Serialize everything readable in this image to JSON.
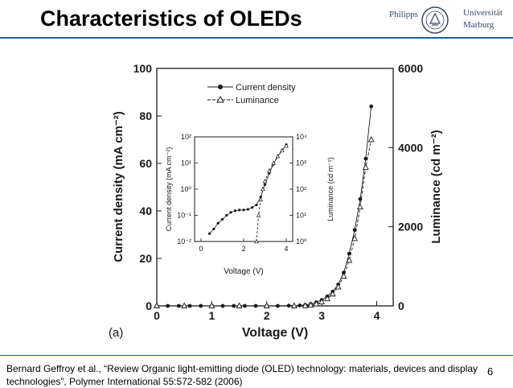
{
  "slide": {
    "title": "Characteristics of OLEDs",
    "logo_line1": "Philipps",
    "logo_line2a": "Universität",
    "logo_line2b": "Marburg",
    "citation": "Bernard Geffroy et al., “Review Organic light-emitting diode (OLED) technology: materials, devices and display technologies”, Polymer International 55:572-582 (2006)",
    "page_number": "6"
  },
  "colors": {
    "title_rule": "#1f5fa8",
    "plot_ink": "#1a1a1a"
  },
  "chart_data": [
    {
      "type": "line",
      "panel_label": "(a)",
      "xlabel": "Voltage (V)",
      "ylabel": "Current density (mA cm⁻²)",
      "y2label": "Luminance (cd m⁻²)",
      "xlim": [
        0,
        4.3
      ],
      "ylim": [
        0,
        100
      ],
      "y2lim": [
        0,
        6000
      ],
      "xticks": [
        "0",
        "1",
        "2",
        "3",
        "4"
      ],
      "yticks": [
        "0",
        "20",
        "40",
        "60",
        "80",
        "100"
      ],
      "y2ticks": [
        "0",
        "2000",
        "4000",
        "6000"
      ],
      "legend": "top-left",
      "series": [
        {
          "name": "Current density",
          "marker": "filled-circle",
          "axis": "left",
          "x": [
            0,
            0.2,
            0.4,
            0.6,
            0.8,
            1.0,
            1.2,
            1.4,
            1.6,
            1.8,
            2.0,
            2.2,
            2.4,
            2.6,
            2.7,
            2.8,
            2.9,
            3.0,
            3.1,
            3.2,
            3.3,
            3.4,
            3.5,
            3.6,
            3.7,
            3.8,
            3.9
          ],
          "values": [
            0,
            0,
            0,
            0,
            0,
            0,
            0,
            0,
            0,
            0,
            0,
            0,
            0.1,
            0.2,
            0.4,
            0.8,
            1.5,
            2.5,
            4,
            6,
            9,
            14,
            22,
            32,
            45,
            62,
            84
          ]
        },
        {
          "name": "Luminance",
          "marker": "open-triangle",
          "axis": "right",
          "x": [
            0,
            0.5,
            1.0,
            1.5,
            2.0,
            2.5,
            2.7,
            2.8,
            2.9,
            3.0,
            3.1,
            3.2,
            3.3,
            3.4,
            3.5,
            3.6,
            3.7,
            3.8,
            3.9
          ],
          "values": [
            0,
            0,
            0,
            0,
            0,
            0,
            5,
            20,
            50,
            100,
            180,
            300,
            480,
            750,
            1150,
            1700,
            2500,
            3500,
            4200
          ]
        }
      ]
    },
    {
      "type": "line",
      "role": "inset",
      "xlabel": "Voltage (V)",
      "ylabel": "Current density (mA cm⁻²)",
      "y2label": "Luminance (cd m⁻²)",
      "scale": "log",
      "xlim": [
        -0.3,
        4.3
      ],
      "ylim": [
        0.01,
        100
      ],
      "y2lim": [
        1,
        10000
      ],
      "xticks": [
        "0",
        "2",
        "4"
      ],
      "yticks": [
        "10⁻²",
        "10⁻¹",
        "10⁰",
        "10¹",
        "10²"
      ],
      "y2ticks": [
        "10⁰",
        "10¹",
        "10²",
        "10³",
        "10⁴"
      ],
      "series": [
        {
          "name": "Current density",
          "marker": "filled-circle",
          "axis": "left",
          "x": [
            0.4,
            0.6,
            0.8,
            1.0,
            1.2,
            1.4,
            1.6,
            1.8,
            2.0,
            2.2,
            2.4,
            2.6,
            2.8,
            3.0,
            3.2,
            3.4,
            3.6,
            3.8,
            4.0
          ],
          "values": [
            0.02,
            0.03,
            0.05,
            0.07,
            0.1,
            0.13,
            0.15,
            0.16,
            0.16,
            0.17,
            0.2,
            0.25,
            0.5,
            1.5,
            4,
            9,
            18,
            30,
            50
          ]
        },
        {
          "name": "Luminance",
          "marker": "open-triangle",
          "axis": "right",
          "x": [
            2.6,
            2.7,
            2.8,
            2.9,
            3.0,
            3.2,
            3.4,
            3.6,
            3.8,
            4.0
          ],
          "values": [
            1,
            10,
            40,
            100,
            200,
            500,
            1000,
            1800,
            3000,
            4500
          ]
        }
      ]
    }
  ]
}
